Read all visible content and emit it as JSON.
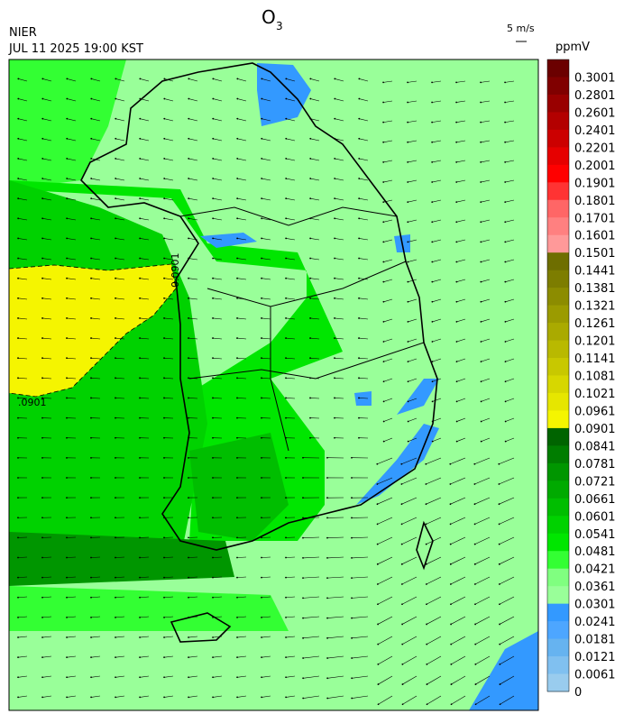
{
  "header": {
    "source": "NIER",
    "datetime": "JUL 11 2025 19:00 KST",
    "title": {
      "main": "O",
      "sub": "3"
    },
    "wind_scale": "5 m/s",
    "unit": "ppmV"
  },
  "map": {
    "contour_labels": [
      "0.0901",
      ".0901"
    ]
  },
  "colorbar": {
    "labels": [
      0.3001,
      0.2801,
      0.2601,
      0.2401,
      0.2201,
      0.2001,
      0.1901,
      0.1801,
      0.1701,
      0.1601,
      0.1501,
      0.1441,
      0.1381,
      0.1321,
      0.1261,
      0.1201,
      0.1141,
      0.1081,
      0.1021,
      0.0961,
      0.0901,
      0.0841,
      0.0781,
      0.0721,
      0.0661,
      0.0601,
      0.0541,
      0.0481,
      0.0421,
      0.0361,
      0.0301,
      0.0241,
      0.0181,
      0.0121,
      0.0061,
      0
    ],
    "colors": [
      "#6b0000",
      "#800000",
      "#990000",
      "#b30000",
      "#cc0000",
      "#e60000",
      "#ff0000",
      "#ff3333",
      "#ff6666",
      "#ff8080",
      "#ff9999",
      "#6e6e00",
      "#7d7d00",
      "#8c8c00",
      "#9b9b00",
      "#aaaa00",
      "#b9b900",
      "#c8c800",
      "#d7d700",
      "#e6e600",
      "#f5f500",
      "#006400",
      "#007d00",
      "#009600",
      "#00aa00",
      "#00be00",
      "#00d200",
      "#00e600",
      "#33ff33",
      "#80ff80",
      "#99ff99",
      "#3399ff",
      "#4da6ff",
      "#66b3f0",
      "#80c0f0",
      "#99ccee"
    ]
  }
}
